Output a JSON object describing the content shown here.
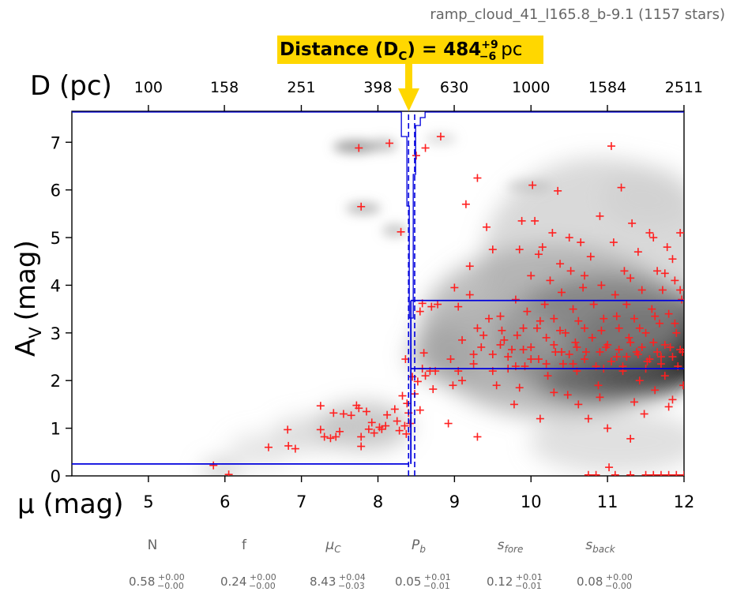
{
  "chart_data": {
    "type": "scatter",
    "cloud_title": "ramp_cloud_41_l165.8_b-9.1 (1157 stars)",
    "distance_annotation": {
      "label_bold": "Distance (D",
      "label_sub": "C",
      "label_eq": ") = 484",
      "plus": "+9",
      "minus": "−6",
      "unit": "pc",
      "value_pc": 484,
      "mu": 8.43
    },
    "xlabel_mu": "μ (mag)",
    "xlabel_top": "D (pc)",
    "ylabel": "A",
    "ylabel_sub": "V",
    "ylabel_unit": "(mag)",
    "xlim": [
      4,
      12
    ],
    "ylim": [
      0,
      7.65
    ],
    "x_ticks": [
      "5",
      "6",
      "7",
      "8",
      "9",
      "10",
      "11",
      "12"
    ],
    "y_ticks": [
      "0",
      "1",
      "2",
      "3",
      "4",
      "5",
      "6",
      "7"
    ],
    "top_ticks": [
      "100",
      "158",
      "251",
      "398",
      "630",
      "1000",
      "1584",
      "2511"
    ],
    "model": {
      "foreground_av": 0.25,
      "background_av_low": 2.25,
      "background_av_high": 3.68,
      "mu_cloud": 8.43,
      "mu_cloud_low": 8.4,
      "mu_cloud_high": 8.48
    },
    "parameters": [
      {
        "name": "N",
        "value": "0.58",
        "plus": "+0.00",
        "minus": "−0.00"
      },
      {
        "name": "f",
        "value": "0.24",
        "plus": "+0.00",
        "minus": "−0.00"
      },
      {
        "name": "μ",
        "sub": "C",
        "value": "8.43",
        "plus": "+0.04",
        "minus": "−0.03"
      },
      {
        "name": "P",
        "sub": "b",
        "value": "0.05",
        "plus": "+0.01",
        "minus": "−0.01"
      },
      {
        "name": "s",
        "sub": "fore",
        "value": "0.12",
        "plus": "+0.01",
        "minus": "−0.01"
      },
      {
        "name": "s",
        "sub": "back",
        "value": "0.08",
        "plus": "+0.00",
        "minus": "−0.00"
      }
    ],
    "colors": {
      "stars": "#ff2020",
      "model": "#0000dd",
      "annotation_bg": "#ffd700",
      "arrow": "#ffd700"
    },
    "points": [
      [
        5.85,
        0.22
      ],
      [
        6.05,
        0.03
      ],
      [
        6.57,
        0.6
      ],
      [
        6.82,
        0.97
      ],
      [
        6.83,
        0.63
      ],
      [
        6.92,
        0.57
      ],
      [
        7.25,
        1.47
      ],
      [
        7.25,
        0.97
      ],
      [
        7.3,
        0.82
      ],
      [
        7.38,
        0.79
      ],
      [
        7.42,
        1.32
      ],
      [
        7.45,
        0.82
      ],
      [
        7.5,
        0.93
      ],
      [
        7.55,
        1.3
      ],
      [
        7.65,
        1.27
      ],
      [
        7.72,
        1.48
      ],
      [
        7.75,
        1.42
      ],
      [
        7.78,
        0.82
      ],
      [
        7.78,
        0.62
      ],
      [
        7.85,
        1.35
      ],
      [
        7.88,
        0.98
      ],
      [
        7.92,
        1.12
      ],
      [
        7.95,
        0.9
      ],
      [
        8.02,
        1.02
      ],
      [
        8.05,
        0.98
      ],
      [
        8.1,
        1.05
      ],
      [
        8.12,
        1.28
      ],
      [
        8.22,
        1.4
      ],
      [
        8.25,
        1.15
      ],
      [
        8.28,
        0.95
      ],
      [
        8.32,
        1.68
      ],
      [
        8.35,
        1.05
      ],
      [
        8.37,
        0.88
      ],
      [
        8.38,
        1.52
      ],
      [
        8.4,
        1.32
      ],
      [
        8.42,
        1.1
      ],
      [
        8.36,
        2.45
      ],
      [
        8.45,
        2.08
      ],
      [
        8.48,
        1.72
      ],
      [
        8.52,
        1.98
      ],
      [
        8.55,
        1.38
      ],
      [
        8.58,
        2.25
      ],
      [
        8.6,
        2.58
      ],
      [
        8.62,
        2.1
      ],
      [
        8.68,
        2.2
      ],
      [
        8.72,
        1.82
      ],
      [
        8.75,
        2.2
      ],
      [
        8.78,
        3.6
      ],
      [
        8.55,
        3.45
      ],
      [
        8.58,
        3.62
      ],
      [
        8.7,
        3.55
      ],
      [
        8.92,
        1.1
      ],
      [
        8.98,
        1.9
      ],
      [
        9.05,
        3.55
      ],
      [
        7.75,
        6.88
      ],
      [
        8.15,
        6.98
      ],
      [
        8.5,
        6.72
      ],
      [
        8.62,
        6.88
      ],
      [
        8.82,
        7.12
      ],
      [
        7.78,
        5.65
      ],
      [
        8.3,
        5.12
      ],
      [
        9.3,
        6.25
      ],
      [
        9.15,
        5.7
      ],
      [
        9.42,
        5.22
      ],
      [
        9.5,
        4.75
      ],
      [
        9.2,
        4.4
      ],
      [
        9.2,
        3.8
      ],
      [
        9.0,
        3.95
      ],
      [
        9.3,
        3.1
      ],
      [
        9.25,
        2.35
      ],
      [
        9.35,
        2.7
      ],
      [
        9.45,
        3.3
      ],
      [
        9.5,
        2.55
      ],
      [
        9.55,
        1.9
      ],
      [
        9.3,
        0.82
      ],
      [
        9.1,
        2.0
      ],
      [
        9.6,
        3.35
      ],
      [
        9.65,
        2.85
      ],
      [
        9.7,
        2.25
      ],
      [
        9.75,
        2.65
      ],
      [
        9.78,
        1.5
      ],
      [
        9.8,
        3.7
      ],
      [
        9.85,
        4.75
      ],
      [
        9.88,
        5.35
      ],
      [
        9.9,
        3.1
      ],
      [
        9.92,
        2.3
      ],
      [
        9.95,
        3.45
      ],
      [
        10.0,
        4.2
      ],
      [
        10.0,
        2.7
      ],
      [
        10.02,
        6.1
      ],
      [
        10.05,
        5.35
      ],
      [
        10.08,
        3.1
      ],
      [
        10.1,
        2.45
      ],
      [
        10.12,
        1.2
      ],
      [
        10.15,
        4.8
      ],
      [
        10.18,
        3.6
      ],
      [
        10.2,
        2.9
      ],
      [
        10.22,
        2.1
      ],
      [
        10.25,
        4.1
      ],
      [
        10.28,
        5.1
      ],
      [
        10.3,
        3.3
      ],
      [
        10.32,
        2.6
      ],
      [
        10.35,
        5.98
      ],
      [
        10.38,
        4.45
      ],
      [
        10.4,
        3.85
      ],
      [
        10.42,
        2.35
      ],
      [
        10.45,
        3.0
      ],
      [
        10.48,
        1.7
      ],
      [
        10.5,
        5.0
      ],
      [
        10.52,
        4.3
      ],
      [
        10.55,
        3.5
      ],
      [
        10.58,
        2.8
      ],
      [
        10.6,
        2.2
      ],
      [
        10.62,
        1.5
      ],
      [
        10.65,
        4.9
      ],
      [
        10.68,
        3.95
      ],
      [
        10.7,
        3.1
      ],
      [
        10.72,
        2.6
      ],
      [
        10.75,
        1.2
      ],
      [
        10.78,
        4.6
      ],
      [
        10.8,
        2.9
      ],
      [
        10.82,
        3.6
      ],
      [
        10.85,
        2.3
      ],
      [
        10.88,
        1.9
      ],
      [
        10.9,
        5.45
      ],
      [
        10.92,
        4.0
      ],
      [
        10.95,
        3.3
      ],
      [
        10.98,
        2.7
      ],
      [
        11.0,
        1.0
      ],
      [
        11.02,
        0.18
      ],
      [
        11.05,
        6.92
      ],
      [
        11.08,
        4.9
      ],
      [
        11.1,
        3.8
      ],
      [
        11.12,
        2.5
      ],
      [
        11.15,
        3.1
      ],
      [
        11.18,
        6.05
      ],
      [
        11.2,
        2.2
      ],
      [
        11.22,
        4.3
      ],
      [
        11.25,
        3.6
      ],
      [
        11.28,
        2.9
      ],
      [
        11.3,
        0.78
      ],
      [
        11.32,
        5.3
      ],
      [
        11.35,
        3.3
      ],
      [
        11.38,
        2.6
      ],
      [
        11.4,
        4.7
      ],
      [
        11.42,
        2.0
      ],
      [
        11.45,
        3.9
      ],
      [
        11.48,
        1.3
      ],
      [
        11.5,
        3.0
      ],
      [
        11.52,
        2.4
      ],
      [
        11.55,
        5.1
      ],
      [
        11.58,
        3.5
      ],
      [
        11.6,
        2.8
      ],
      [
        11.62,
        1.8
      ],
      [
        11.65,
        4.3
      ],
      [
        11.68,
        3.2
      ],
      [
        11.7,
        2.5
      ],
      [
        11.72,
        3.9
      ],
      [
        11.75,
        2.1
      ],
      [
        11.78,
        4.8
      ],
      [
        11.8,
        3.4
      ],
      [
        11.82,
        2.7
      ],
      [
        11.85,
        1.6
      ],
      [
        11.88,
        4.1
      ],
      [
        11.9,
        3.0
      ],
      [
        11.92,
        2.3
      ],
      [
        11.95,
        5.1
      ],
      [
        11.97,
        3.7
      ],
      [
        11.98,
        2.6
      ],
      [
        11.99,
        1.9
      ],
      [
        10.9,
        2.6
      ],
      [
        11.0,
        2.75
      ],
      [
        11.05,
        2.4
      ],
      [
        11.15,
        2.65
      ],
      [
        11.25,
        2.5
      ],
      [
        11.3,
        2.8
      ],
      [
        11.4,
        2.55
      ],
      [
        11.45,
        2.7
      ],
      [
        11.55,
        2.45
      ],
      [
        11.65,
        2.6
      ],
      [
        11.75,
        2.75
      ],
      [
        11.85,
        2.5
      ],
      [
        11.95,
        2.65
      ],
      [
        10.5,
        2.55
      ],
      [
        10.6,
        2.7
      ],
      [
        10.7,
        2.45
      ],
      [
        10.3,
        2.75
      ],
      [
        10.4,
        2.6
      ],
      [
        10.0,
        2.45
      ],
      [
        9.9,
        2.65
      ],
      [
        9.7,
        2.5
      ],
      [
        9.6,
        2.75
      ],
      [
        10.85,
        0.02
      ],
      [
        11.1,
        0.02
      ],
      [
        11.3,
        0.02
      ],
      [
        11.5,
        0.02
      ],
      [
        11.6,
        0.02
      ],
      [
        11.7,
        0.02
      ],
      [
        11.8,
        0.02
      ],
      [
        11.9,
        0.02
      ],
      [
        12.0,
        0.02
      ],
      [
        10.75,
        0.02
      ],
      [
        9.38,
        2.95
      ],
      [
        9.62,
        3.05
      ],
      [
        9.82,
        2.95
      ],
      [
        10.12,
        3.25
      ],
      [
        10.38,
        3.05
      ],
      [
        10.62,
        3.25
      ],
      [
        10.92,
        3.05
      ],
      [
        11.12,
        3.35
      ],
      [
        11.42,
        3.1
      ],
      [
        11.62,
        3.35
      ],
      [
        11.88,
        3.2
      ],
      [
        11.5,
        2.25
      ],
      [
        11.7,
        2.35
      ],
      [
        11.2,
        2.3
      ],
      [
        10.95,
        2.25
      ],
      [
        10.55,
        2.35
      ],
      [
        10.2,
        2.35
      ],
      [
        9.8,
        2.3
      ],
      [
        9.5,
        2.2
      ],
      [
        9.25,
        2.55
      ],
      [
        9.1,
        2.85
      ],
      [
        8.95,
        2.45
      ],
      [
        9.05,
        2.2
      ],
      [
        9.85,
        1.85
      ],
      [
        10.3,
        1.75
      ],
      [
        10.9,
        1.65
      ],
      [
        11.35,
        1.55
      ],
      [
        11.8,
        1.45
      ],
      [
        10.1,
        4.65
      ],
      [
        10.7,
        4.2
      ],
      [
        11.3,
        4.15
      ],
      [
        11.75,
        4.25
      ],
      [
        11.95,
        3.9
      ],
      [
        11.6,
        5.0
      ],
      [
        11.85,
        4.55
      ]
    ]
  }
}
